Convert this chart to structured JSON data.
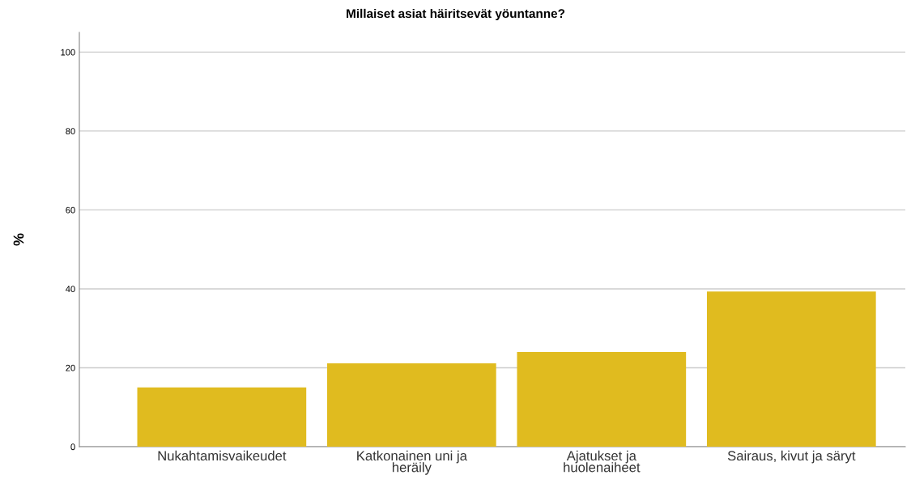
{
  "chart_data": {
    "type": "bar",
    "title": "Millaiset asiat häiritsevät yöuntanne?",
    "ylabel": "%",
    "categories": [
      "Nukahtamisvaikeudet",
      "Katkonainen uni ja\nheräily",
      "Ajatukset ja\nhuolenaiheet",
      "Sairaus, kivut ja säryt"
    ],
    "values": [
      15.0,
      21.1,
      24.0,
      39.3
    ],
    "color": "#e0bb1f",
    "ylim": [
      0,
      105
    ],
    "yticks": [
      0,
      20,
      40,
      60,
      80,
      100
    ],
    "grid": "y"
  }
}
